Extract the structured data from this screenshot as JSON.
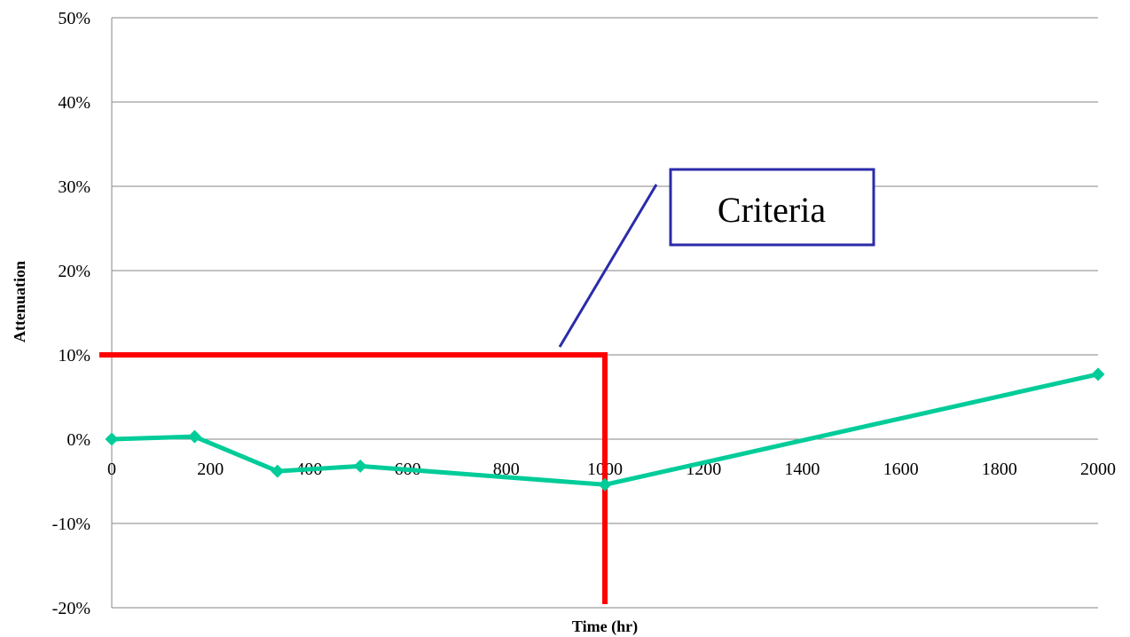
{
  "chart_data": {
    "type": "line",
    "title": "",
    "xlabel": "Time (hr)",
    "ylabel": "Attenuation",
    "xlim": [
      0,
      2000
    ],
    "ylim": [
      -20,
      50
    ],
    "x_ticks": [
      0,
      200,
      400,
      600,
      800,
      1000,
      1200,
      1400,
      1600,
      1800,
      2000
    ],
    "x_tick_labels": [
      "0",
      "200",
      "400",
      "600",
      "800",
      "1000",
      "1200",
      "1400",
      "1600",
      "1800",
      "2000"
    ],
    "y_ticks": [
      -20,
      -10,
      0,
      10,
      20,
      30,
      40,
      50
    ],
    "y_tick_labels": [
      "-20%",
      "-10%",
      "0%",
      "10%",
      "20%",
      "30%",
      "40%",
      "50%"
    ],
    "grid": "horizontal",
    "legend": "none",
    "series": [
      {
        "x": [
          0,
          168,
          336,
          504,
          1000,
          2000
        ],
        "values": [
          0.0,
          0.3,
          -3.8,
          -3.2,
          -5.4,
          7.7
        ],
        "color": "#00cc99",
        "marker": "diamond"
      }
    ],
    "criteria": {
      "label": "Criteria",
      "y_level": 10,
      "x_limit": 1000,
      "color": "#ff0000",
      "callout_color": "#2b2baa"
    }
  }
}
